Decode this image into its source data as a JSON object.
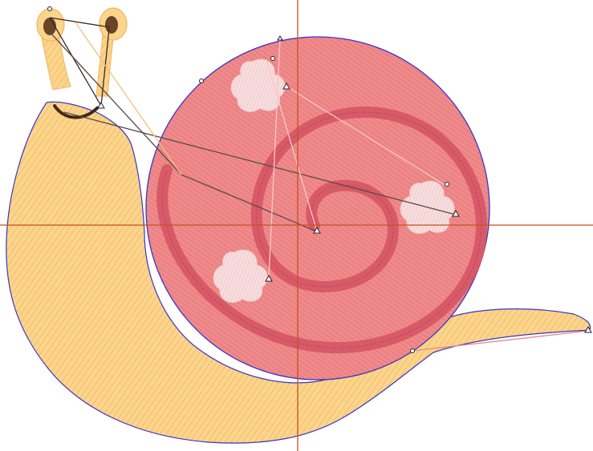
{
  "canvas": {
    "background": "#ffffff",
    "crosshair_color": "#c8501e",
    "outline_color": "#3b34c8",
    "stitch_path_color": "#5a3a2a"
  },
  "design": {
    "body_fill": "#fbd58c",
    "body_stitch": "#f2b25c",
    "shell_fill": "#ef8a8a",
    "shell_stitch": "#e06a70",
    "spiral_fill": "#d85a66",
    "spots_fill": "#f6dcdc",
    "eye_color": "#6a4426",
    "mouth_color": "#3f2a1a"
  },
  "icons": {
    "node": "triangle-node-icon",
    "node_alt": "circle-node-icon"
  }
}
